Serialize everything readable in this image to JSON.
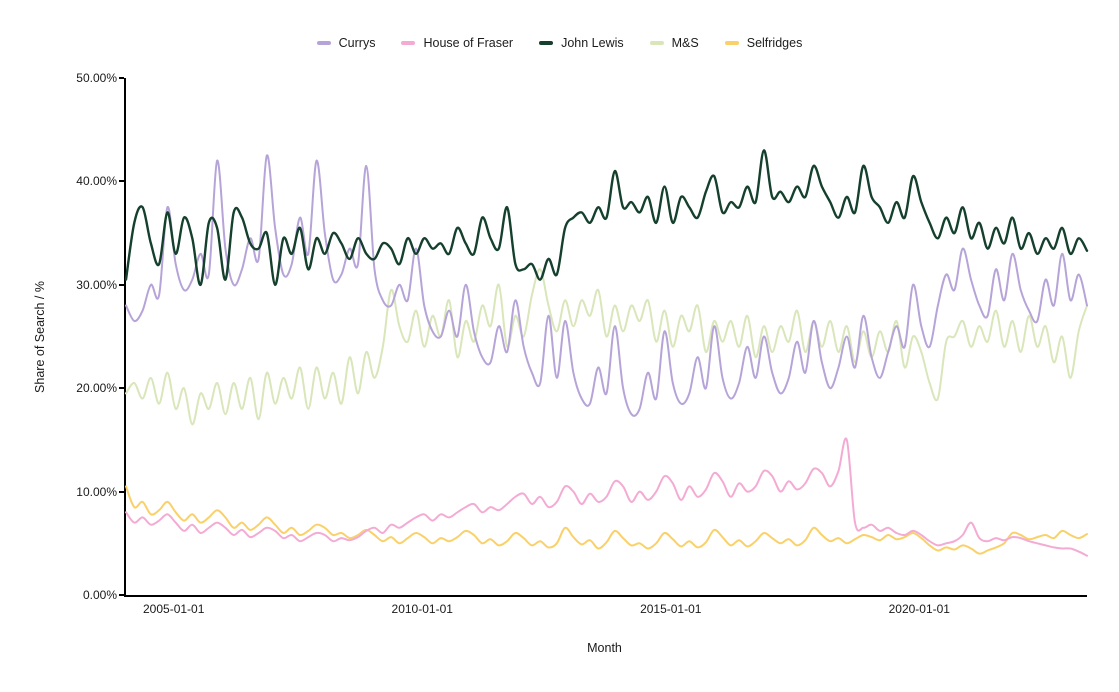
{
  "accent_colors": {
    "currys": "#b6a4d9",
    "house_of_fraser": "#f3abd3",
    "john_lewis": "#14402d",
    "ms": "#d9e6ba",
    "selfridges": "#fad169",
    "axis": "#000000",
    "text": "#1a1a1a",
    "background": "#ffffff"
  },
  "chart_data": {
    "type": "line",
    "title": "",
    "xlabel": "Month",
    "ylabel": "Share of Search / %",
    "legend_position": "top",
    "grid": false,
    "ylim": [
      0,
      50
    ],
    "y_tick_values": [
      0,
      10,
      20,
      30,
      40,
      50
    ],
    "y_tick_labels": [
      "0.00%",
      "10.00%",
      "20.00%",
      "30.00%",
      "40.00%",
      "50.00%"
    ],
    "x_tick_labels": [
      "2005-01-01",
      "2010-01-01",
      "2015-01-01",
      "2020-01-01"
    ],
    "x_tick_months": [
      12,
      72,
      132,
      192
    ],
    "x_start_date": "2004-01-01",
    "x_end_date": "2023-05-01",
    "x_range_months": 232,
    "sample_interval_months": 2,
    "unit": "percent",
    "series": [
      {
        "name": "Currys",
        "color": "#b6a4d9",
        "values": [
          28.0,
          26.5,
          27.5,
          30.0,
          29.0,
          37.5,
          32.0,
          29.5,
          30.5,
          33.0,
          31.0,
          42.0,
          33.5,
          30.0,
          31.5,
          34.5,
          32.5,
          42.5,
          35.5,
          31.0,
          32.0,
          36.5,
          33.0,
          42.0,
          35.0,
          30.5,
          31.0,
          33.5,
          32.0,
          41.5,
          31.5,
          28.5,
          28.0,
          30.0,
          28.5,
          33.5,
          28.0,
          25.5,
          25.0,
          27.5,
          25.0,
          30.0,
          25.5,
          23.0,
          22.5,
          26.0,
          23.5,
          28.5,
          24.0,
          21.5,
          20.5,
          27.0,
          21.0,
          26.5,
          21.5,
          19.0,
          18.5,
          22.0,
          19.5,
          26.0,
          20.0,
          17.5,
          18.0,
          21.5,
          19.0,
          25.5,
          20.5,
          18.5,
          19.5,
          23.0,
          20.0,
          26.0,
          21.0,
          19.0,
          20.5,
          24.0,
          21.0,
          25.0,
          21.5,
          19.5,
          21.0,
          24.5,
          21.5,
          26.5,
          22.5,
          20.0,
          22.0,
          25.0,
          22.0,
          27.0,
          23.0,
          21.0,
          23.5,
          26.0,
          24.0,
          30.0,
          26.0,
          24.0,
          28.0,
          31.0,
          29.5,
          33.5,
          30.5,
          28.0,
          27.0,
          31.5,
          28.5,
          33.0,
          29.5,
          27.5,
          26.5,
          30.5,
          28.0,
          33.0,
          28.5,
          31.0,
          28.0
        ]
      },
      {
        "name": "House of Fraser",
        "color": "#f3abd3",
        "values": [
          8.0,
          7.0,
          7.5,
          6.8,
          7.2,
          7.8,
          7.0,
          6.2,
          6.8,
          6.0,
          6.5,
          7.0,
          6.5,
          5.8,
          6.3,
          5.6,
          6.0,
          6.5,
          6.2,
          5.5,
          5.8,
          5.2,
          5.6,
          6.0,
          5.8,
          5.2,
          5.5,
          5.3,
          5.6,
          6.2,
          6.5,
          6.0,
          6.8,
          6.5,
          7.0,
          7.5,
          7.8,
          7.2,
          7.8,
          7.5,
          8.0,
          8.5,
          8.8,
          8.0,
          8.5,
          8.2,
          8.8,
          9.5,
          9.8,
          8.8,
          9.5,
          8.5,
          9.0,
          10.5,
          10.0,
          8.8,
          9.8,
          9.0,
          9.5,
          11.0,
          10.5,
          9.0,
          10.0,
          9.2,
          10.0,
          11.5,
          10.8,
          9.2,
          10.5,
          9.5,
          10.2,
          11.8,
          11.0,
          9.5,
          10.8,
          10.0,
          10.5,
          12.0,
          11.5,
          10.0,
          11.0,
          10.2,
          10.8,
          12.2,
          11.8,
          10.5,
          12.0,
          15.0,
          7.0,
          6.5,
          6.8,
          6.2,
          6.5,
          6.0,
          5.8,
          6.2,
          5.8,
          5.2,
          4.8,
          5.0,
          5.2,
          5.8,
          7.0,
          5.5,
          5.2,
          5.5,
          5.3,
          5.6,
          5.5,
          5.2,
          5.0,
          4.8,
          4.6,
          4.5,
          4.5,
          4.2,
          3.8
        ]
      },
      {
        "name": "John Lewis",
        "color": "#14402d",
        "values": [
          30.5,
          36.0,
          37.5,
          34.0,
          32.0,
          37.0,
          33.0,
          36.5,
          34.5,
          30.0,
          36.0,
          35.5,
          30.5,
          37.0,
          36.5,
          34.0,
          33.5,
          35.0,
          30.0,
          34.5,
          33.0,
          35.5,
          31.5,
          34.5,
          33.0,
          35.0,
          34.0,
          32.5,
          34.5,
          33.0,
          32.5,
          34.0,
          33.5,
          32.0,
          34.5,
          33.0,
          34.5,
          33.5,
          34.0,
          33.0,
          35.5,
          34.0,
          33.0,
          36.5,
          34.5,
          33.5,
          37.5,
          32.0,
          31.5,
          32.0,
          30.5,
          32.5,
          31.0,
          35.5,
          36.5,
          37.0,
          36.0,
          37.5,
          36.5,
          41.0,
          37.5,
          38.0,
          37.0,
          38.5,
          36.0,
          39.5,
          36.0,
          38.5,
          37.5,
          36.5,
          39.0,
          40.5,
          37.0,
          38.0,
          37.5,
          39.5,
          38.0,
          43.0,
          38.5,
          39.0,
          38.0,
          39.5,
          38.5,
          41.5,
          39.5,
          38.0,
          36.5,
          38.5,
          37.0,
          41.5,
          38.5,
          37.5,
          36.0,
          38.0,
          36.5,
          40.5,
          38.0,
          36.0,
          34.5,
          36.5,
          35.0,
          37.5,
          34.5,
          36.0,
          33.5,
          35.5,
          34.0,
          36.5,
          33.5,
          35.0,
          33.0,
          34.5,
          33.5,
          35.5,
          33.0,
          34.5,
          33.3
        ]
      },
      {
        "name": "M&S",
        "color": "#d9e6ba",
        "values": [
          19.5,
          20.5,
          19.0,
          21.0,
          18.5,
          21.5,
          18.0,
          20.0,
          16.5,
          19.5,
          18.0,
          20.5,
          17.5,
          20.5,
          18.0,
          21.0,
          17.0,
          21.5,
          18.5,
          21.0,
          19.0,
          22.0,
          18.0,
          22.0,
          19.0,
          21.5,
          18.5,
          23.0,
          19.5,
          23.5,
          21.0,
          24.0,
          29.5,
          26.0,
          24.5,
          27.5,
          24.0,
          27.0,
          25.0,
          28.5,
          23.0,
          26.5,
          24.5,
          28.0,
          26.0,
          30.0,
          24.0,
          27.0,
          25.0,
          29.0,
          31.5,
          28.0,
          25.5,
          28.5,
          26.0,
          28.5,
          27.0,
          29.5,
          25.0,
          28.0,
          25.5,
          28.0,
          26.5,
          28.5,
          24.5,
          27.5,
          24.0,
          27.0,
          25.5,
          28.0,
          23.5,
          26.5,
          24.5,
          26.5,
          24.0,
          27.0,
          23.0,
          26.0,
          23.5,
          26.0,
          24.5,
          27.5,
          23.5,
          26.5,
          24.0,
          26.5,
          23.5,
          26.0,
          22.5,
          25.5,
          23.0,
          25.5,
          23.5,
          26.5,
          22.0,
          25.0,
          23.5,
          20.5,
          19.0,
          24.5,
          25.0,
          26.5,
          24.0,
          26.0,
          24.5,
          27.5,
          24.0,
          26.5,
          23.5,
          27.0,
          24.0,
          26.0,
          22.5,
          25.0,
          21.0,
          25.5,
          28.0
        ]
      },
      {
        "name": "Selfridges",
        "color": "#fad169",
        "values": [
          10.5,
          8.5,
          9.0,
          7.8,
          8.2,
          9.0,
          8.0,
          7.2,
          7.8,
          7.0,
          7.5,
          8.2,
          7.5,
          6.5,
          7.0,
          6.3,
          6.8,
          7.5,
          6.8,
          6.0,
          6.5,
          5.8,
          6.2,
          6.8,
          6.5,
          5.8,
          6.0,
          5.5,
          5.8,
          6.3,
          5.8,
          5.2,
          5.6,
          5.0,
          5.5,
          6.0,
          5.6,
          5.0,
          5.5,
          5.2,
          5.6,
          6.2,
          5.8,
          5.0,
          5.4,
          4.8,
          5.2,
          6.0,
          5.5,
          4.8,
          5.2,
          4.6,
          5.0,
          6.5,
          5.6,
          4.9,
          5.3,
          4.5,
          5.1,
          6.2,
          5.5,
          4.8,
          5.0,
          4.5,
          5.0,
          6.0,
          5.4,
          4.7,
          5.2,
          4.6,
          5.1,
          6.3,
          5.6,
          4.8,
          5.3,
          4.7,
          5.2,
          6.0,
          5.5,
          5.0,
          5.4,
          4.8,
          5.3,
          6.5,
          5.8,
          5.2,
          5.5,
          5.0,
          5.4,
          5.8,
          5.6,
          5.3,
          5.8,
          5.4,
          5.6,
          6.0,
          5.5,
          4.8,
          4.3,
          4.6,
          4.4,
          4.8,
          4.5,
          4.0,
          4.3,
          4.6,
          5.0,
          6.0,
          5.8,
          5.4,
          5.6,
          5.8,
          5.5,
          6.2,
          5.8,
          5.5,
          5.9
        ]
      }
    ],
    "draw_order": [
      "M&S",
      "Selfridges",
      "House of Fraser",
      "Currys",
      "John Lewis"
    ]
  }
}
